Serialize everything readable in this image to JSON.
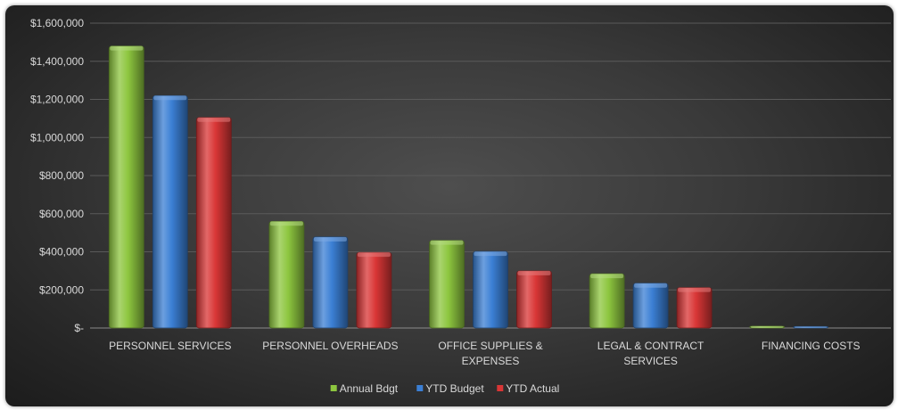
{
  "chart_data": {
    "type": "bar",
    "title": "",
    "xlabel": "",
    "ylabel": "",
    "categories": [
      "PERSONNEL SERVICES",
      "PERSONNEL OVERHEADS",
      "OFFICE SUPPLIES & EXPENSES",
      "LEGAL & CONTRACT SERVICES",
      "FINANCING COSTS"
    ],
    "category_lines": [
      [
        "PERSONNEL SERVICES"
      ],
      [
        "PERSONNEL OVERHEADS"
      ],
      [
        "OFFICE SUPPLIES &",
        "EXPENSES"
      ],
      [
        "LEGAL & CONTRACT",
        "SERVICES"
      ],
      [
        "FINANCING COSTS"
      ]
    ],
    "series": [
      {
        "name": "Annual Bdgt",
        "values": [
          1480000,
          560000,
          460000,
          285000,
          10000
        ],
        "color": "#8dc63f"
      },
      {
        "name": "YTD Budget",
        "values": [
          1220000,
          478000,
          402000,
          235000,
          8000
        ],
        "color": "#3b7fd4"
      },
      {
        "name": "YTD Actual",
        "values": [
          1105000,
          397000,
          300000,
          212000,
          0
        ],
        "color": "#d93636"
      }
    ],
    "ylim": [
      0,
      1600000
    ],
    "yticks": [
      0,
      200000,
      400000,
      600000,
      800000,
      1000000,
      1200000,
      1400000,
      1600000
    ],
    "ytick_labels": [
      "$-",
      "$200,000",
      "$400,000",
      "$600,000",
      "$800,000",
      "$1,000,000",
      "$1,200,000",
      "$1,400,000",
      "$1,600,000"
    ],
    "grid": true,
    "legend_position": "bottom"
  }
}
